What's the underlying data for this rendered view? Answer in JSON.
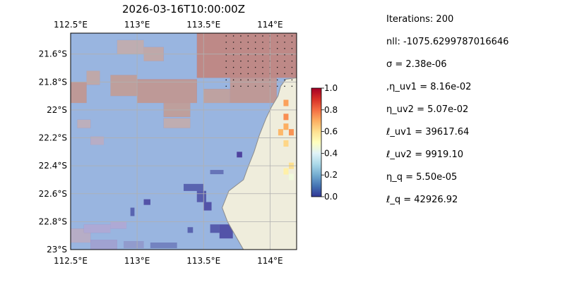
{
  "chart_data": {
    "type": "heatmap",
    "title": "2026-03-16T10:00:00Z",
    "map": {
      "lon_range": [
        112.5,
        114.2
      ],
      "lat_range": [
        -23.0,
        -21.45
      ],
      "x_ticks": [
        {
          "value": 112.5,
          "label": "112.5°E"
        },
        {
          "value": 113.0,
          "label": "113°E"
        },
        {
          "value": 113.5,
          "label": "113.5°E"
        },
        {
          "value": 114.0,
          "label": "114°E"
        }
      ],
      "y_ticks": [
        {
          "value": -21.6,
          "label": "21.6°S"
        },
        {
          "value": -21.8,
          "label": "21.8°S"
        },
        {
          "value": -22.0,
          "label": "22°S"
        },
        {
          "value": -22.2,
          "label": "22.2°S"
        },
        {
          "value": -22.4,
          "label": "22.4°S"
        },
        {
          "value": -22.6,
          "label": "22.6°S"
        },
        {
          "value": -22.8,
          "label": "22.8°S"
        },
        {
          "value": -23.0,
          "label": "23°S"
        }
      ],
      "grid": true,
      "ocean_color": "#99b5e0",
      "land_color": "#efeddc",
      "coast_color": "#8c8c8c",
      "coastline": [
        [
          113.8,
          -23.0
        ],
        [
          113.74,
          -22.9
        ],
        [
          113.68,
          -22.8
        ],
        [
          113.64,
          -22.7
        ],
        [
          113.69,
          -22.58
        ],
        [
          113.8,
          -22.5
        ],
        [
          113.83,
          -22.42
        ],
        [
          113.88,
          -22.3
        ],
        [
          113.92,
          -22.18
        ],
        [
          113.97,
          -22.06
        ],
        [
          114.01,
          -21.98
        ],
        [
          114.06,
          -21.9
        ],
        [
          114.08,
          -21.83
        ],
        [
          114.12,
          -21.78
        ],
        [
          114.2,
          -21.77
        ]
      ],
      "land_color_cells": [
        {
          "lon": 114.12,
          "lat": -21.95,
          "value": 0.72
        },
        {
          "lon": 114.12,
          "lat": -22.05,
          "value": 0.75
        },
        {
          "lon": 114.12,
          "lat": -22.12,
          "value": 0.7
        },
        {
          "lon": 114.08,
          "lat": -22.16,
          "value": 0.68
        },
        {
          "lon": 114.16,
          "lat": -22.16,
          "value": 0.74
        },
        {
          "lon": 114.12,
          "lat": -22.24,
          "value": 0.62
        },
        {
          "lon": 114.16,
          "lat": -22.4,
          "value": 0.6
        },
        {
          "lon": 114.12,
          "lat": -22.44,
          "value": 0.55
        },
        {
          "lon": 114.16,
          "lat": -22.48,
          "value": 0.45
        }
      ],
      "field_patches": [
        {
          "lon": [
            113.45,
            114.2
          ],
          "lat": [
            -21.77,
            -21.45
          ],
          "value": 0.68
        },
        {
          "lon": [
            113.7,
            114.05
          ],
          "lat": [
            -21.95,
            -21.77
          ],
          "value": 0.62
        },
        {
          "lon": [
            112.5,
            112.62
          ],
          "lat": [
            -21.95,
            -21.8
          ],
          "value": 0.62
        },
        {
          "lon": [
            112.8,
            113.0
          ],
          "lat": [
            -21.9,
            -21.75
          ],
          "value": 0.6
        },
        {
          "lon": [
            113.0,
            113.45
          ],
          "lat": [
            -21.95,
            -21.78
          ],
          "value": 0.62
        },
        {
          "lon": [
            113.2,
            113.4
          ],
          "lat": [
            -22.05,
            -21.95
          ],
          "value": 0.6
        },
        {
          "lon": [
            113.5,
            113.7
          ],
          "lat": [
            -21.95,
            -21.85
          ],
          "value": 0.58
        },
        {
          "lon": [
            113.05,
            113.2
          ],
          "lat": [
            -21.65,
            -21.55
          ],
          "value": 0.55
        },
        {
          "lon": [
            112.85,
            113.05
          ],
          "lat": [
            -21.6,
            -21.5
          ],
          "value": 0.52
        },
        {
          "lon": [
            112.62,
            112.72
          ],
          "lat": [
            -21.82,
            -21.72
          ],
          "value": 0.55
        },
        {
          "lon": [
            113.2,
            113.4
          ],
          "lat": [
            -22.13,
            -22.06
          ],
          "value": 0.52
        },
        {
          "lon": [
            112.55,
            112.65
          ],
          "lat": [
            -22.13,
            -22.07
          ],
          "value": 0.48
        },
        {
          "lon": [
            112.65,
            112.75
          ],
          "lat": [
            -22.25,
            -22.19
          ],
          "value": 0.45
        },
        {
          "lon": [
            112.5,
            112.65
          ],
          "lat": [
            -22.95,
            -22.85
          ],
          "value": 0.45
        },
        {
          "lon": [
            112.6,
            112.8
          ],
          "lat": [
            -22.88,
            -22.82
          ],
          "value": 0.4
        },
        {
          "lon": [
            112.8,
            112.92
          ],
          "lat": [
            -22.85,
            -22.8
          ],
          "value": 0.4
        },
        {
          "lon": [
            112.65,
            112.85
          ],
          "lat": [
            -23.0,
            -22.93
          ],
          "value": 0.35
        },
        {
          "lon": [
            112.9,
            113.05
          ],
          "lat": [
            -22.99,
            -22.94
          ],
          "value": 0.3
        },
        {
          "lon": [
            113.1,
            113.3
          ],
          "lat": [
            -22.99,
            -22.95
          ],
          "value": 0.2
        },
        {
          "lon": [
            113.62,
            113.72
          ],
          "lat": [
            -22.92,
            -22.82
          ],
          "value": 0.05
        },
        {
          "lon": [
            113.55,
            113.62
          ],
          "lat": [
            -22.88,
            -22.82
          ],
          "value": 0.08
        },
        {
          "lon": [
            113.35,
            113.5
          ],
          "lat": [
            -22.58,
            -22.53
          ],
          "value": 0.1
        },
        {
          "lon": [
            113.45,
            113.52
          ],
          "lat": [
            -22.66,
            -22.58
          ],
          "value": 0.08
        },
        {
          "lon": [
            113.55,
            113.65
          ],
          "lat": [
            -22.46,
            -22.43
          ],
          "value": 0.15
        },
        {
          "lon": [
            113.75,
            113.79
          ],
          "lat": [
            -22.34,
            -22.3
          ],
          "value": 0.0
        },
        {
          "lon": [
            113.05,
            113.1
          ],
          "lat": [
            -22.68,
            -22.64
          ],
          "value": 0.05
        },
        {
          "lon": [
            112.95,
            112.98
          ],
          "lat": [
            -22.76,
            -22.7
          ],
          "value": 0.1
        },
        {
          "lon": [
            113.38,
            113.42
          ],
          "lat": [
            -22.88,
            -22.84
          ],
          "value": 0.1
        },
        {
          "lon": [
            113.5,
            113.56
          ],
          "lat": [
            -22.72,
            -22.66
          ],
          "value": 0.05
        }
      ],
      "stipple_region": {
        "lon": [
          113.65,
          114.2
        ],
        "lat": [
          -21.85,
          -21.45
        ]
      }
    },
    "colorbar": {
      "range": [
        0.0,
        1.0
      ],
      "ticks": [
        0.0,
        0.2,
        0.4,
        0.6,
        0.8,
        1.0
      ],
      "tick_labels": [
        "0.0",
        "0.2",
        "0.4",
        "0.6",
        "0.8",
        "1.0"
      ],
      "colormap": "RdYlBu_r",
      "colormap_stops": [
        "#313695",
        "#4575b4",
        "#74add1",
        "#abd9e9",
        "#e0f3f8",
        "#ffffbf",
        "#fee090",
        "#fdae61",
        "#f46d43",
        "#d73027",
        "#a50026"
      ]
    },
    "overlay_color": "#6a3fa0"
  },
  "params": [
    "Iterations: 200",
    "nll: -1075.6299787016646",
    "σ = 2.38e-06",
    ",η_uv1 = 8.16e-02",
    "η_uv2 = 5.07e-02",
    "ℓ_uv1 = 39617.64",
    "ℓ_uv2 = 9919.10",
    "η_q = 5.50e-05",
    "ℓ_q = 42926.92"
  ]
}
